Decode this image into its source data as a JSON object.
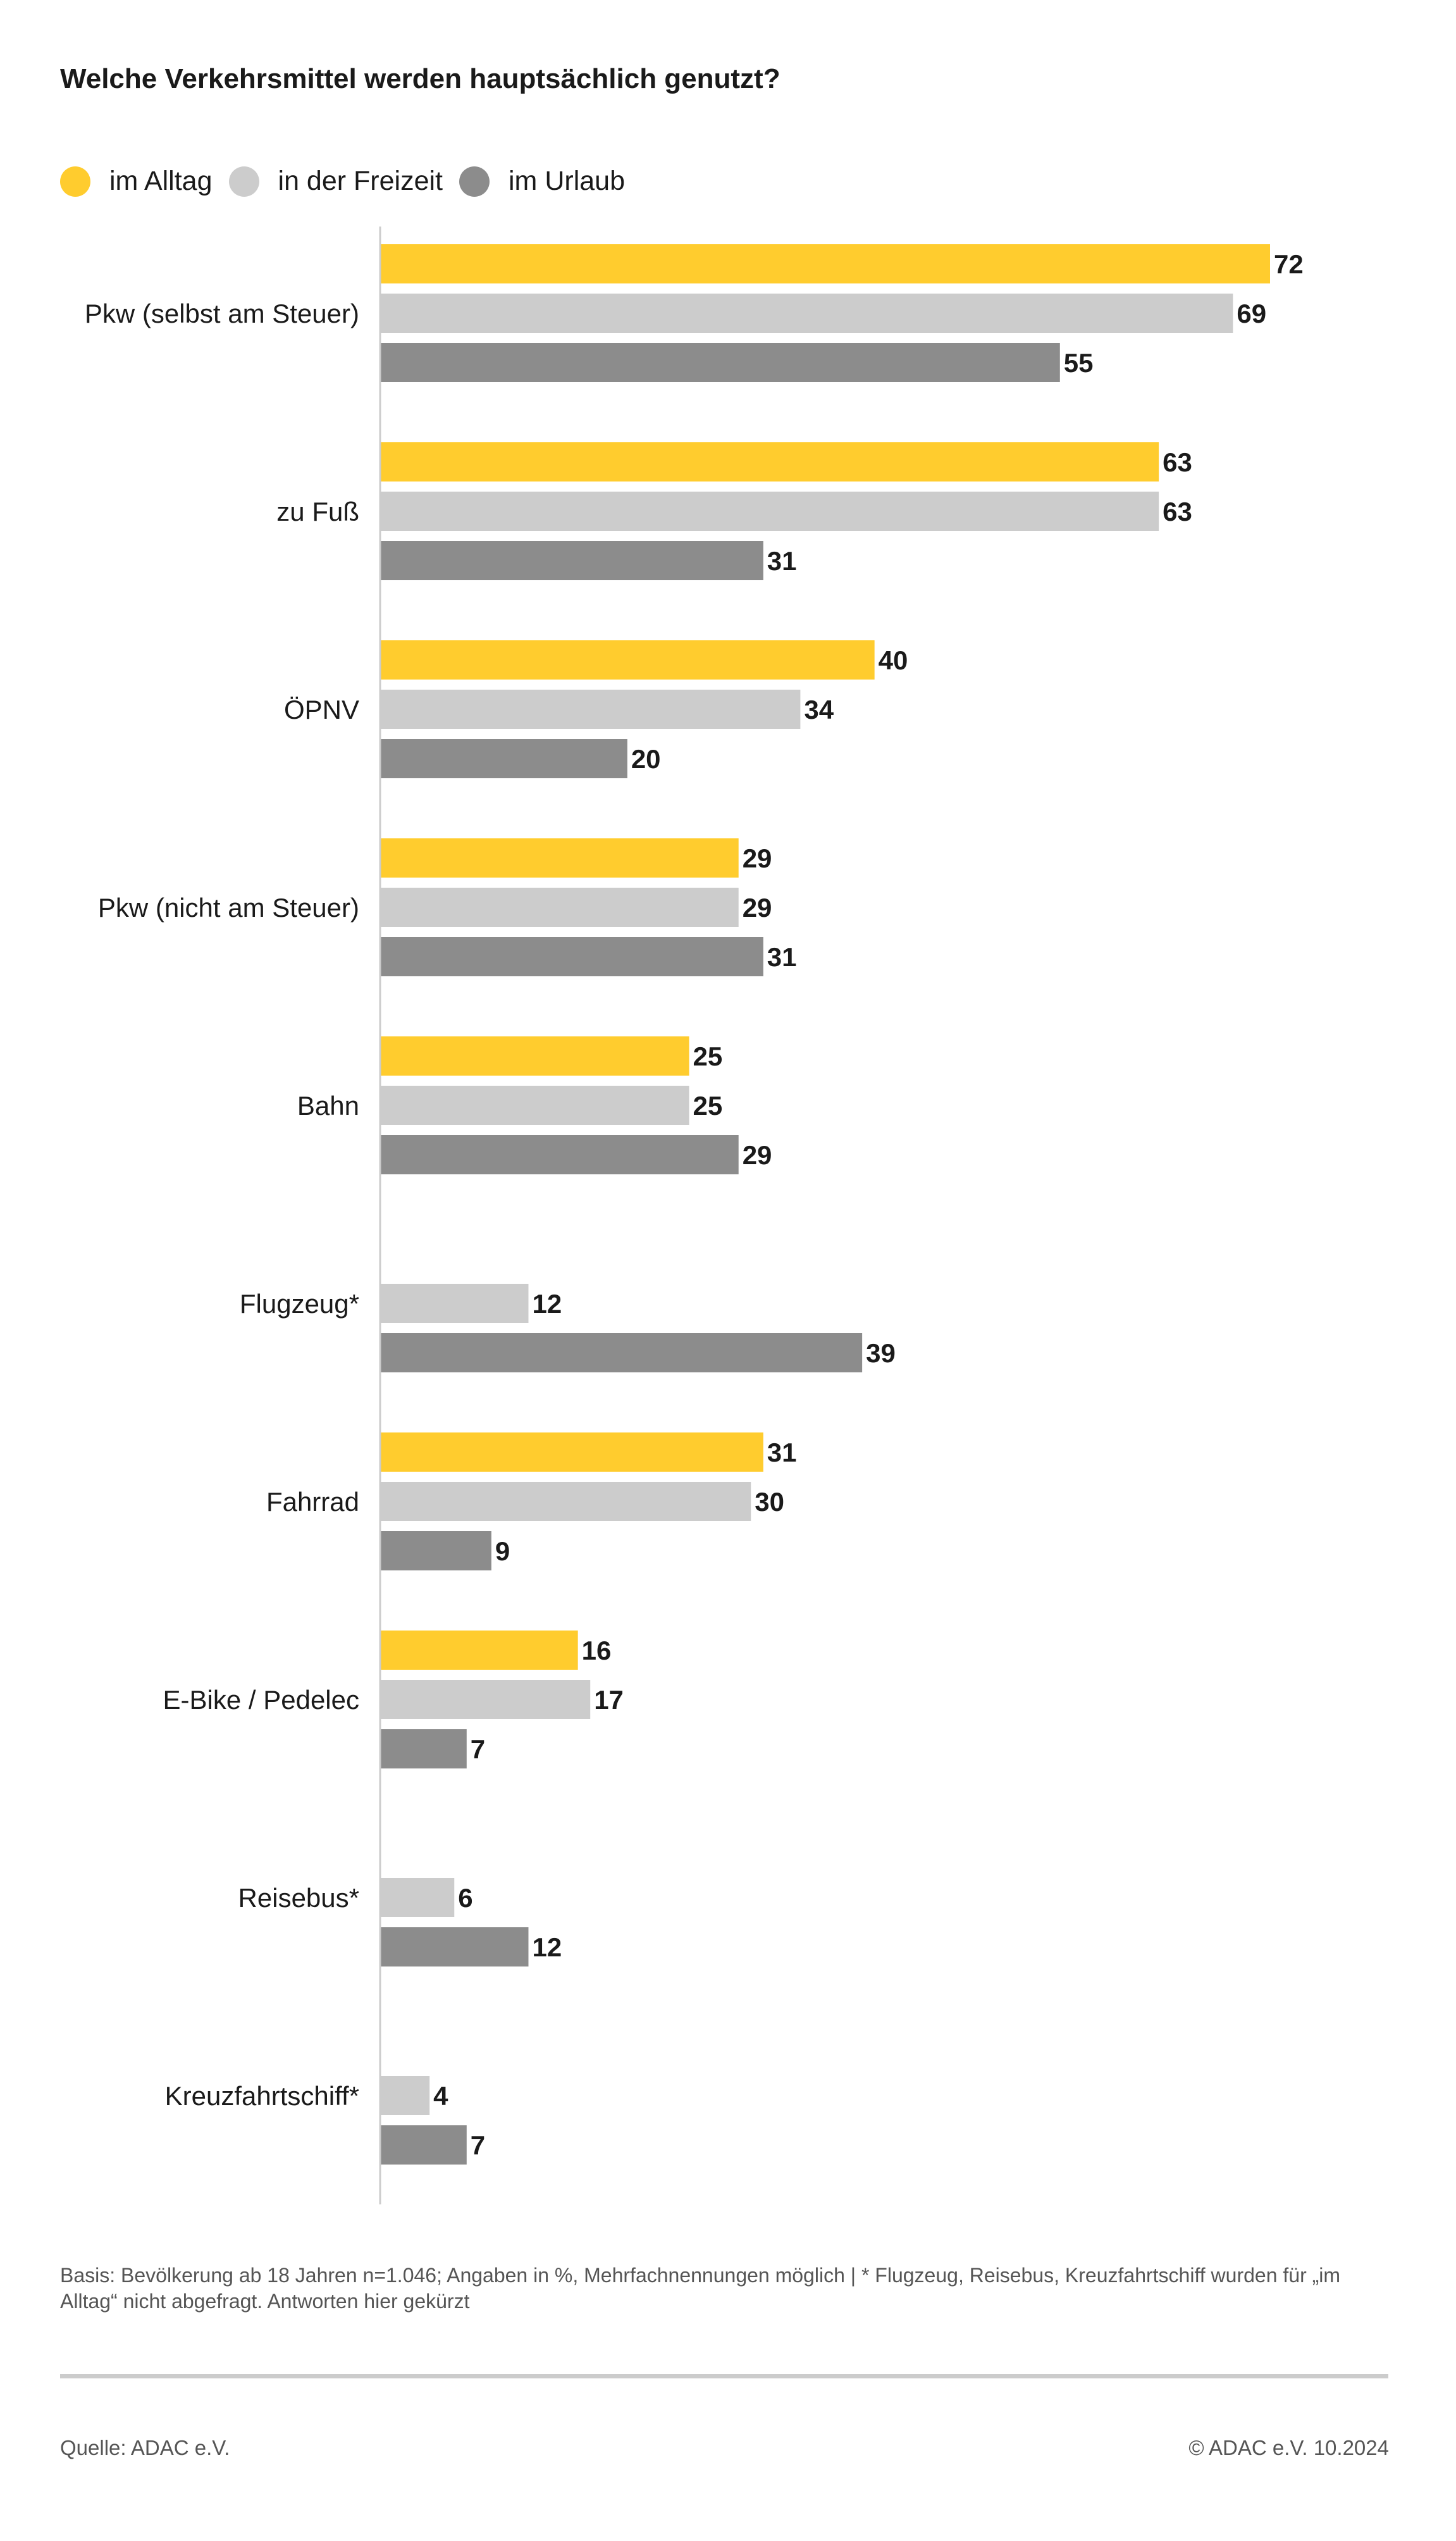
{
  "chart_data": {
    "type": "bar",
    "orientation": "horizontal",
    "title": "Welche Verkehrsmittel werden hauptsächlich genutzt?",
    "categories": [
      "Pkw (selbst am Steuer)",
      "zu Fuß",
      "ÖPNV",
      "Pkw (nicht am Steuer)",
      "Bahn",
      "Flugzeug*",
      "Fahrrad",
      "E-Bike / Pedelec",
      "Reisebus*",
      "Kreuzfahrtschiff*"
    ],
    "series": [
      {
        "name": "im Alltag",
        "color": "#FFCC2E",
        "values": [
          72,
          63,
          40,
          29,
          25,
          null,
          31,
          16,
          null,
          null
        ]
      },
      {
        "name": "in der Freizeit",
        "color": "#CCCCCC",
        "values": [
          69,
          63,
          34,
          29,
          25,
          12,
          30,
          17,
          6,
          4
        ]
      },
      {
        "name": "im Urlaub",
        "color": "#8C8C8C",
        "values": [
          55,
          31,
          20,
          31,
          29,
          39,
          9,
          7,
          12,
          7
        ]
      }
    ],
    "xlim": [
      0,
      72
    ],
    "grid": false,
    "legend": "top-left",
    "data_labels": true
  },
  "footnote": "Basis: Bevölkerung ab 18 Jahren n=1.046; Angaben in %, Mehrfachnennungen möglich | * Flugzeug, Reisebus, Kreuzfahrtschiff wurden für „im Alltag“ nicht abgefragt. Antworten hier gekürzt",
  "source": "Quelle: ADAC e.V.",
  "copyright": "© ADAC e.V. 10.2024"
}
